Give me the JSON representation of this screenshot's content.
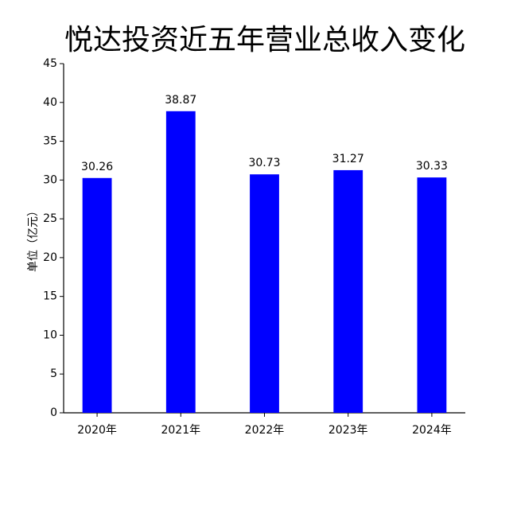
{
  "chart_data": {
    "type": "bar",
    "title": "悦达投资近五年营业总收入变化",
    "y_label": "单位（亿元）",
    "categories": [
      "2020年",
      "2021年",
      "2022年",
      "2023年",
      "2024年"
    ],
    "values": [
      30.26,
      38.87,
      30.73,
      31.27,
      30.33
    ],
    "color": "#0000ff",
    "ylim": [
      0,
      45
    ],
    "yticks": [
      0,
      5,
      10,
      15,
      20,
      25,
      30,
      35,
      40,
      45
    ],
    "grid": false
  }
}
